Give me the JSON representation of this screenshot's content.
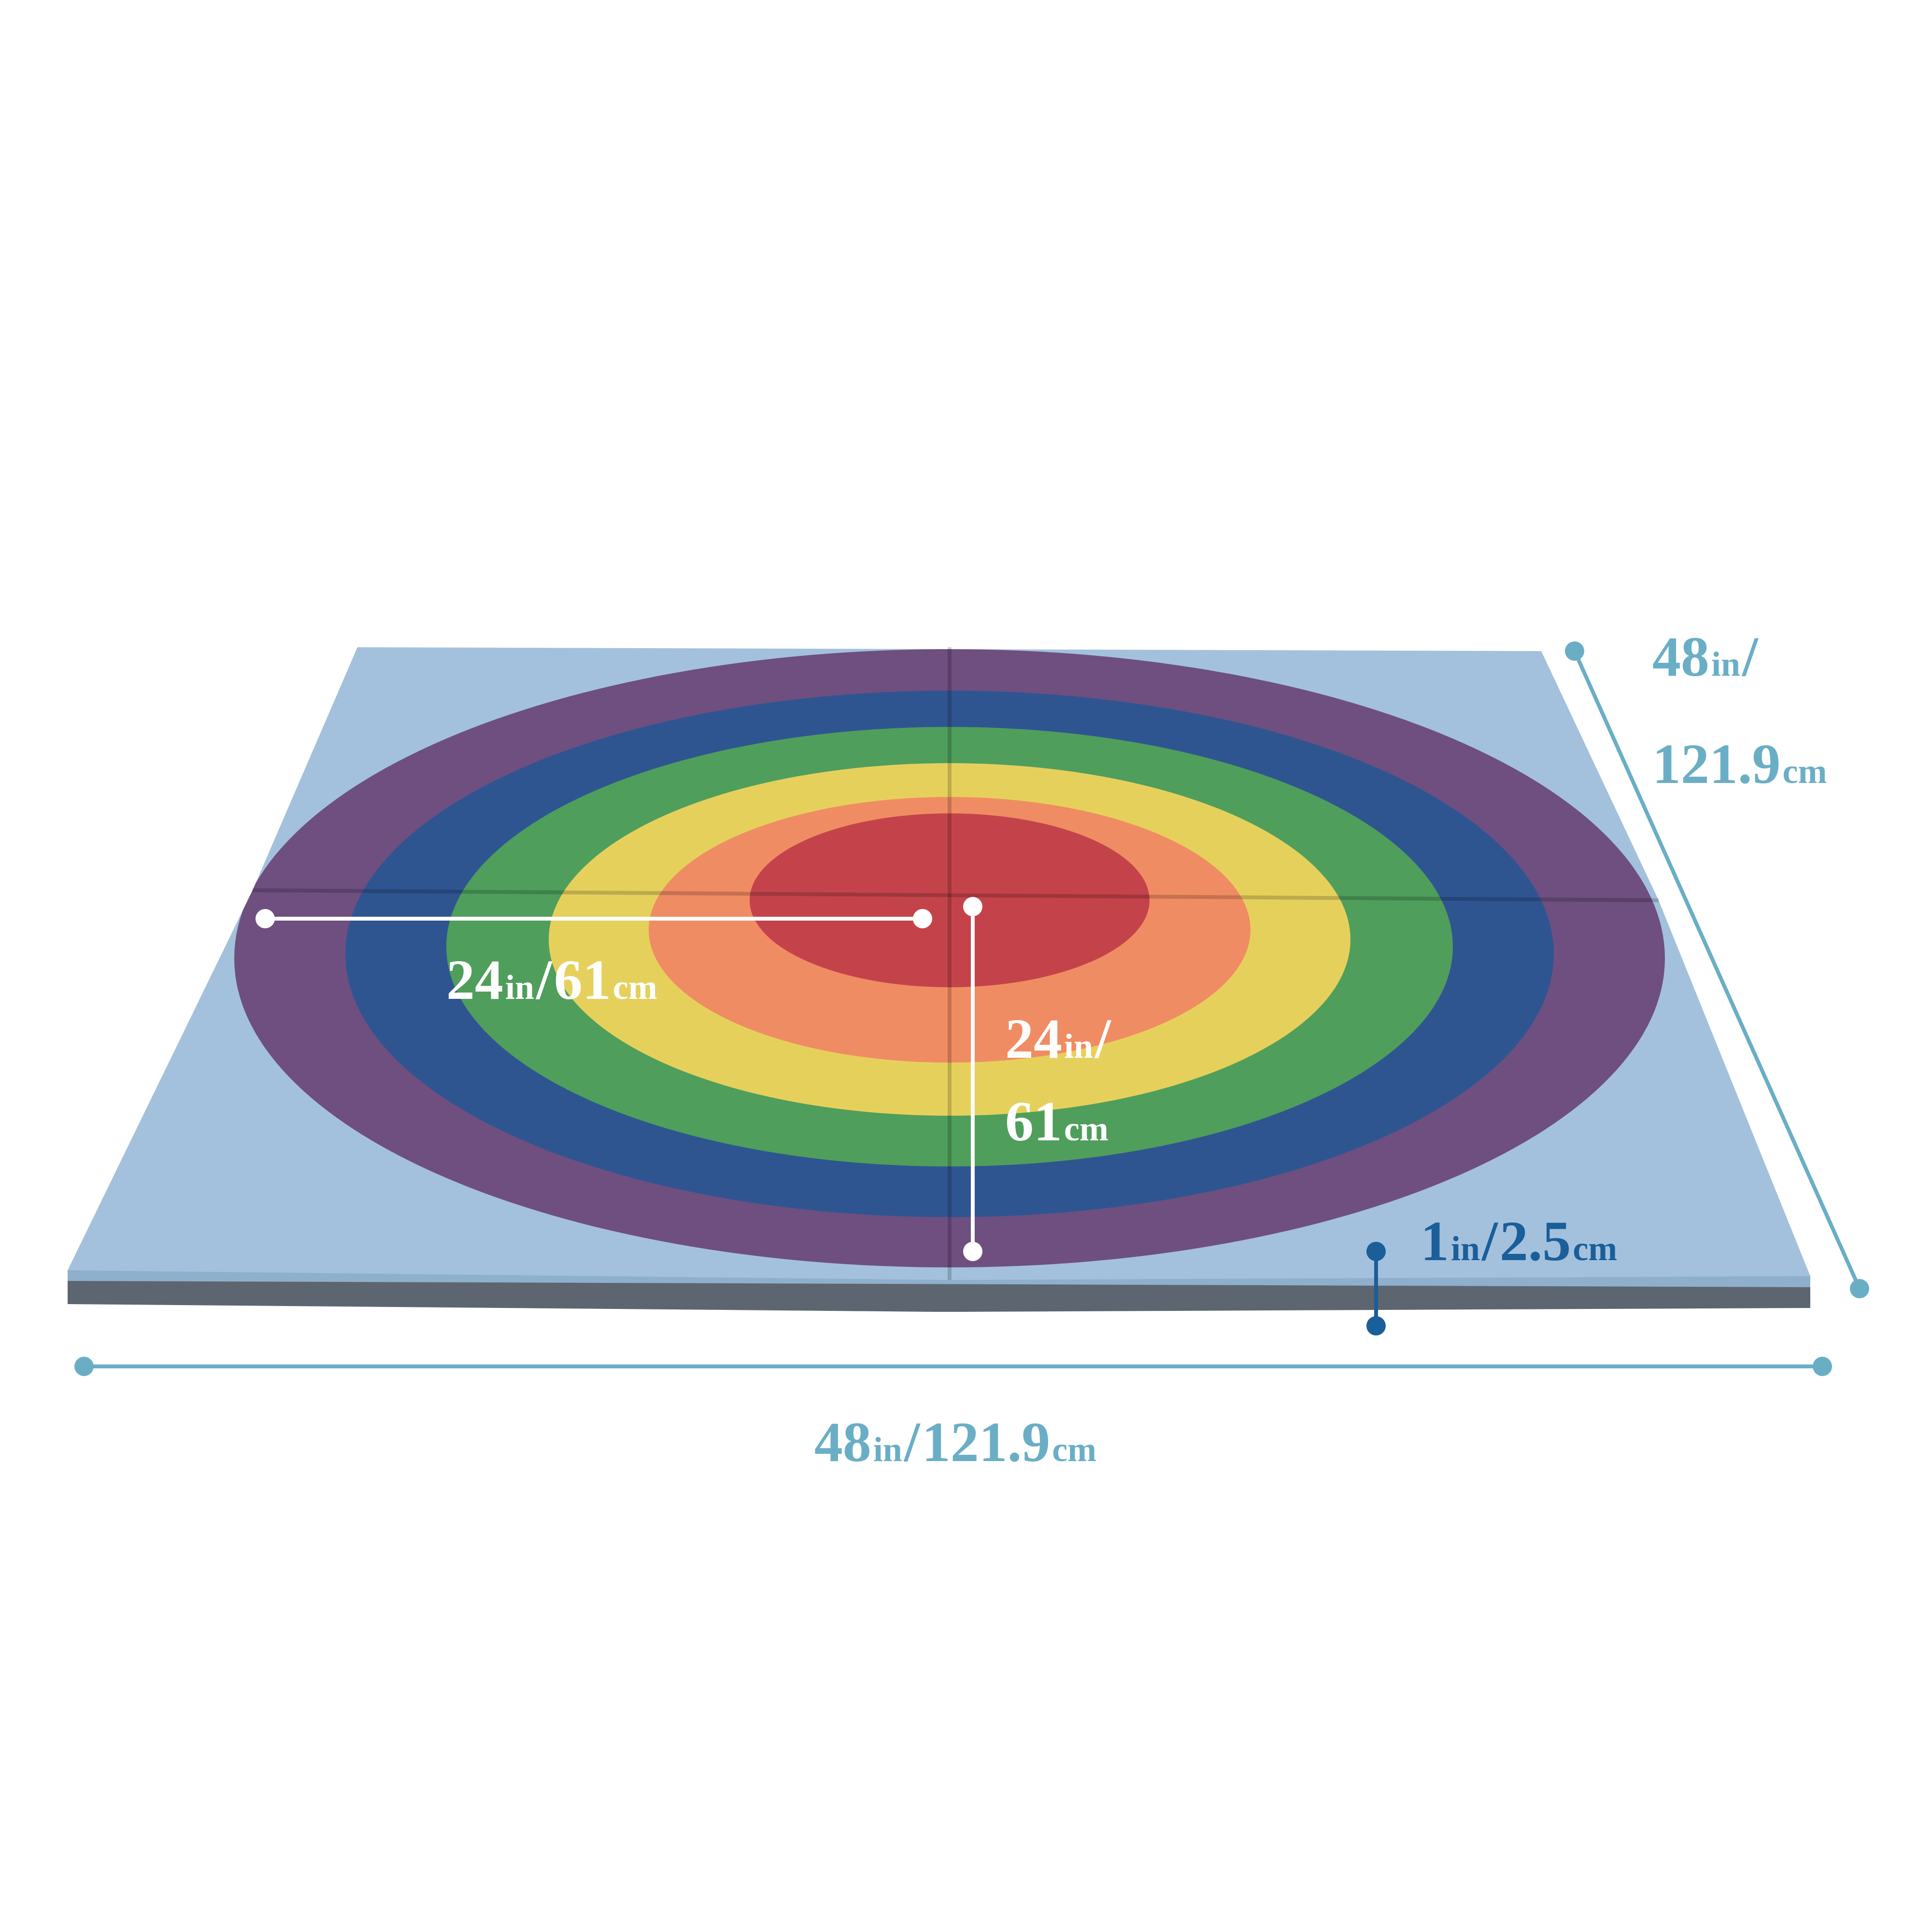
{
  "dimensions": {
    "radius_horizontal": {
      "in_value": "24",
      "in_unit": "in",
      "separator": "/",
      "cm_value": "61",
      "cm_unit": "cm"
    },
    "radius_vertical": {
      "in_value": "24",
      "in_unit": "in",
      "separator": "/",
      "cm_value": "61",
      "cm_unit": "cm"
    },
    "thickness": {
      "in_value": "1",
      "in_unit": "in",
      "separator": "/",
      "cm_value": "2.5",
      "cm_unit": "cm"
    },
    "width": {
      "in_value": "48",
      "in_unit": "in",
      "separator": "/",
      "cm_value": "121.9",
      "cm_unit": "cm"
    },
    "depth": {
      "in_value": "48",
      "in_unit": "in",
      "separator": "/",
      "cm_value": "121.9",
      "cm_unit": "cm"
    }
  }
}
